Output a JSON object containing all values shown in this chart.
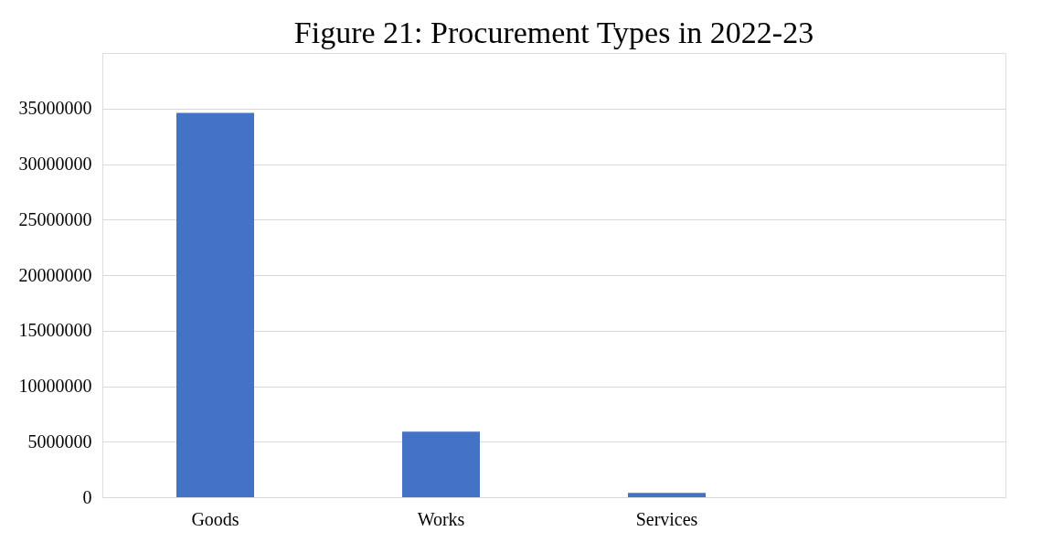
{
  "chart_data": {
    "type": "bar",
    "title": "Figure 21: Procurement Types in 2022-23",
    "categories": [
      "Goods",
      "Works",
      "Services",
      null
    ],
    "values": [
      34600000,
      5900000,
      400000,
      0
    ],
    "color": "#4472c4",
    "ylim": [
      0,
      40000000
    ],
    "yticks": [
      0,
      5000000,
      10000000,
      15000000,
      20000000,
      25000000,
      30000000,
      35000000
    ],
    "grid": "y"
  }
}
